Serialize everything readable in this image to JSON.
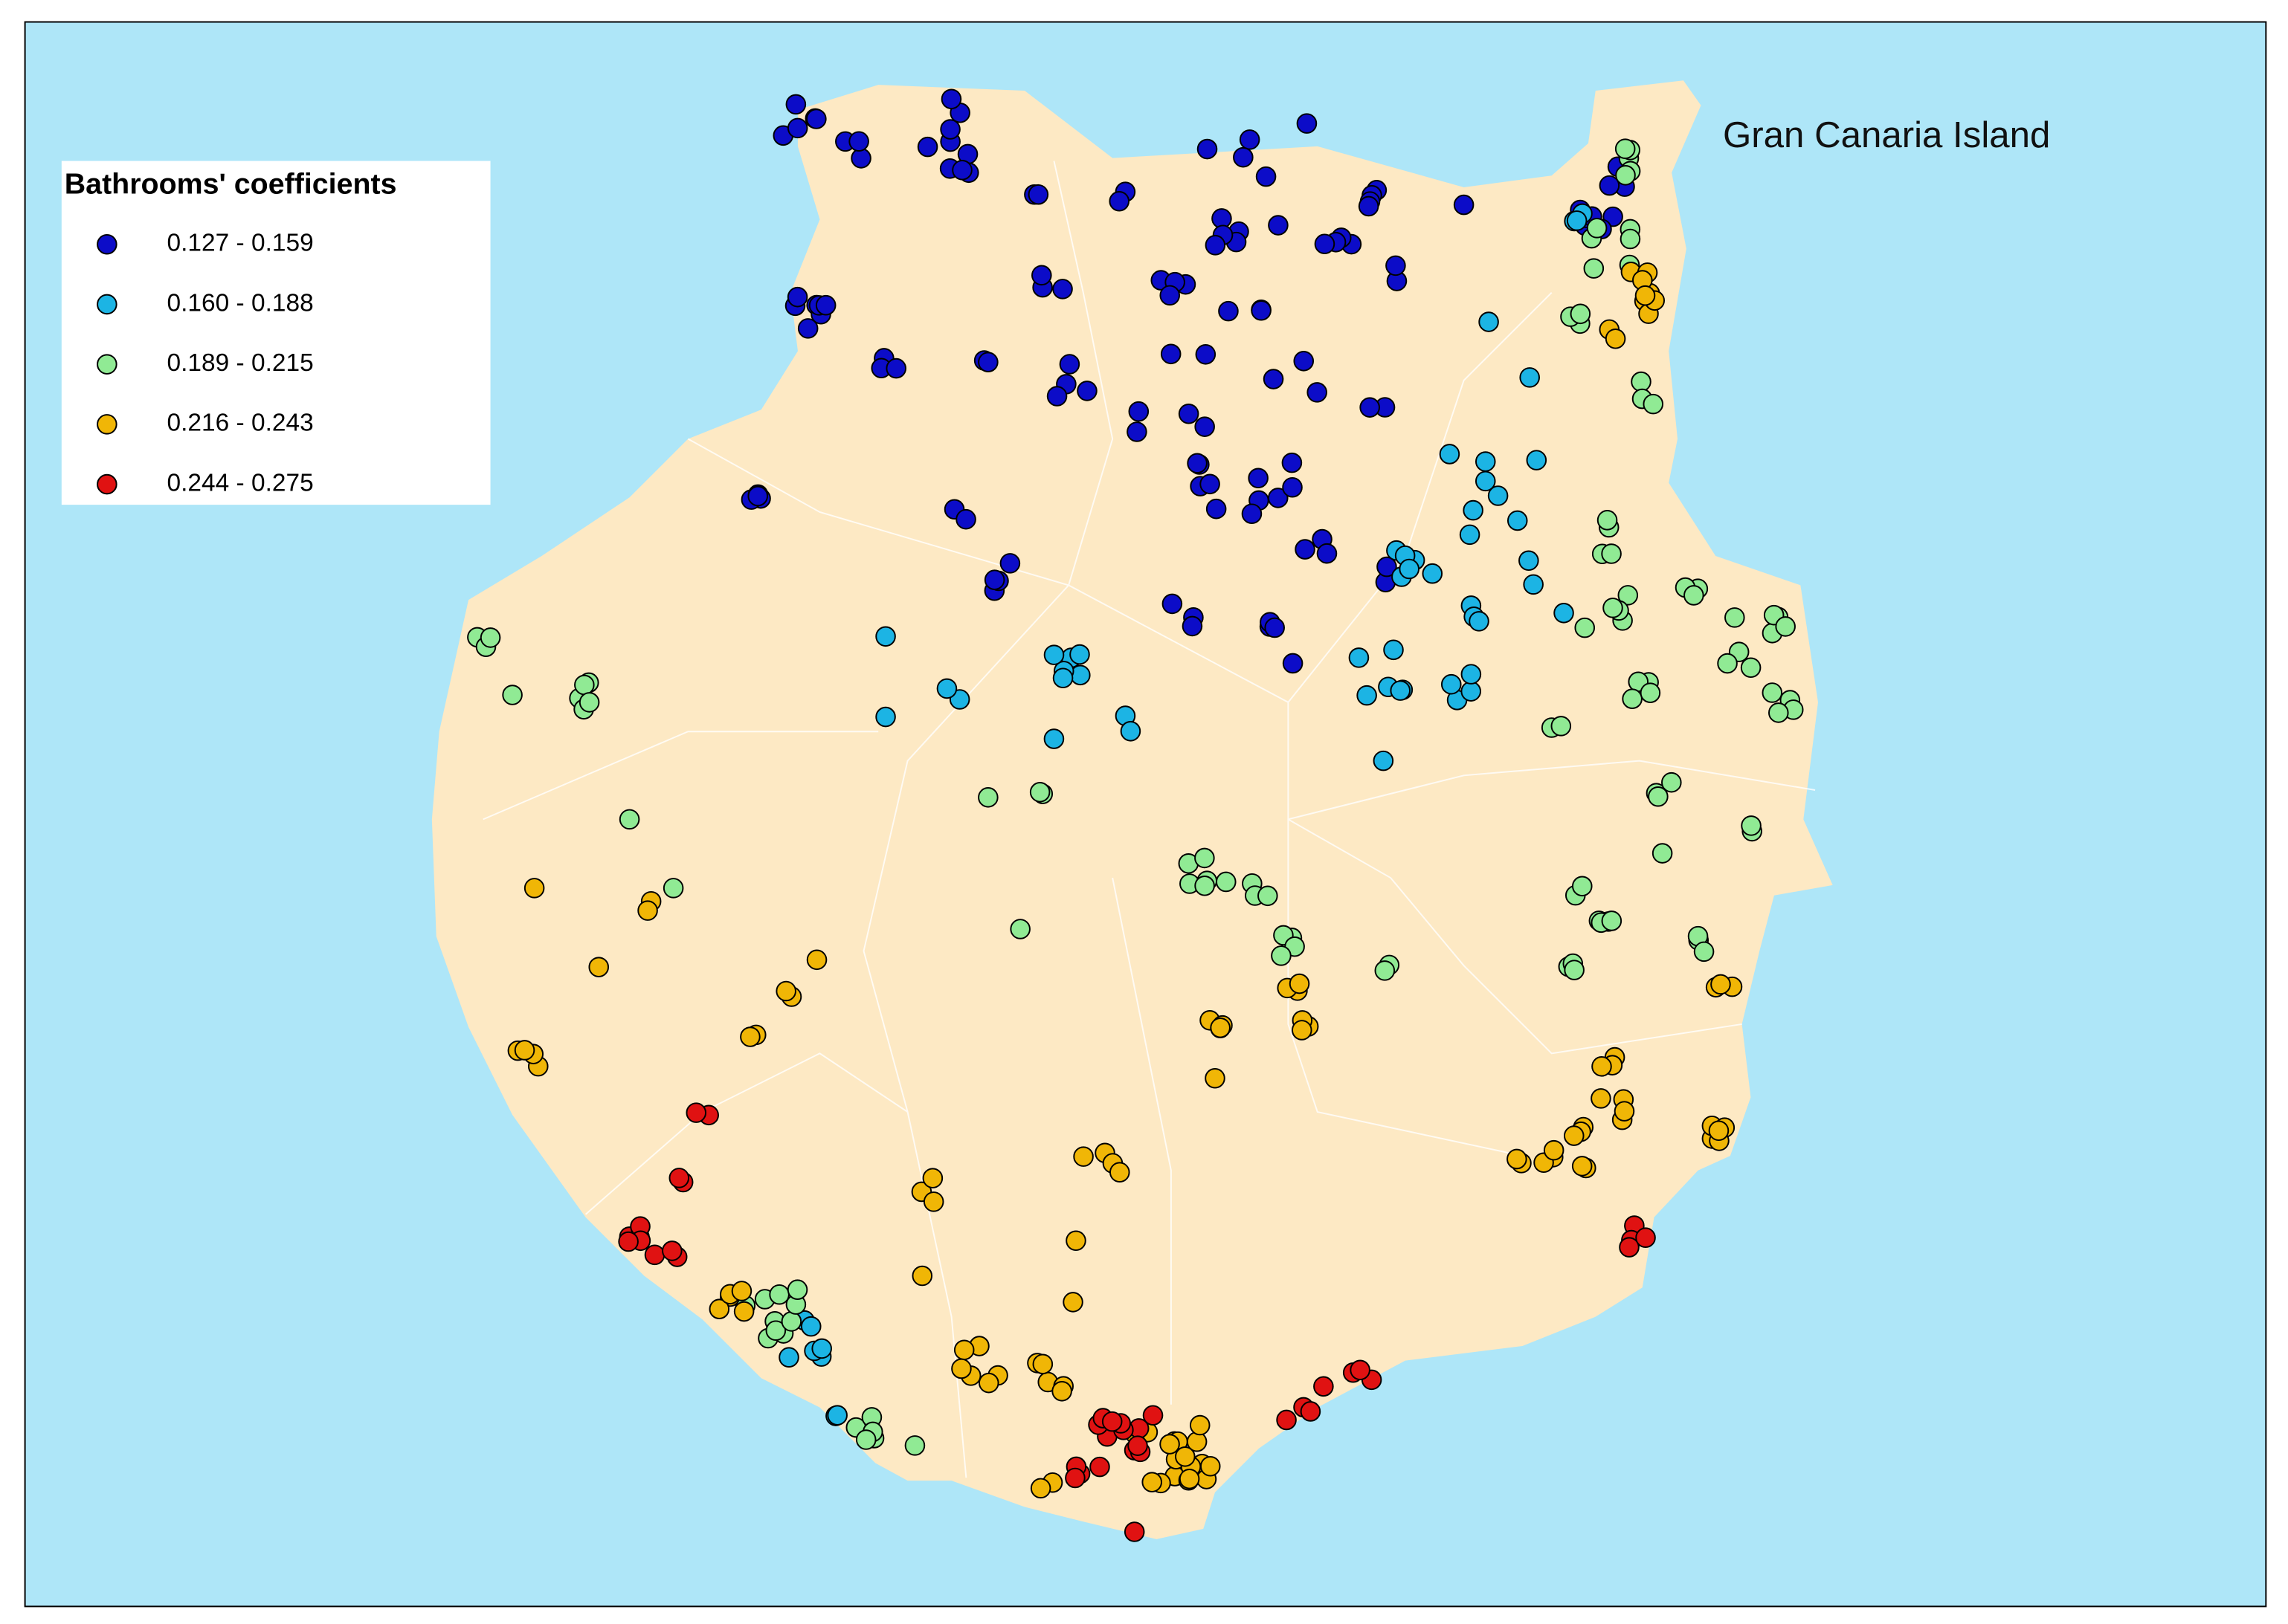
{
  "map": {
    "title": "Gran Canaria Island",
    "legend": {
      "title": "Bathrooms' coefficients",
      "classes": [
        {
          "label": "0.127 - 0.159",
          "color": "#0c0cc8"
        },
        {
          "label": "0.160 - 0.188",
          "color": "#1cb4e4"
        },
        {
          "label": "0.189 - 0.215",
          "color": "#90ea94"
        },
        {
          "label": "0.216 - 0.243",
          "color": "#f0b606"
        },
        {
          "label": "0.244 - 0.275",
          "color": "#e01212"
        }
      ]
    }
  }
}
